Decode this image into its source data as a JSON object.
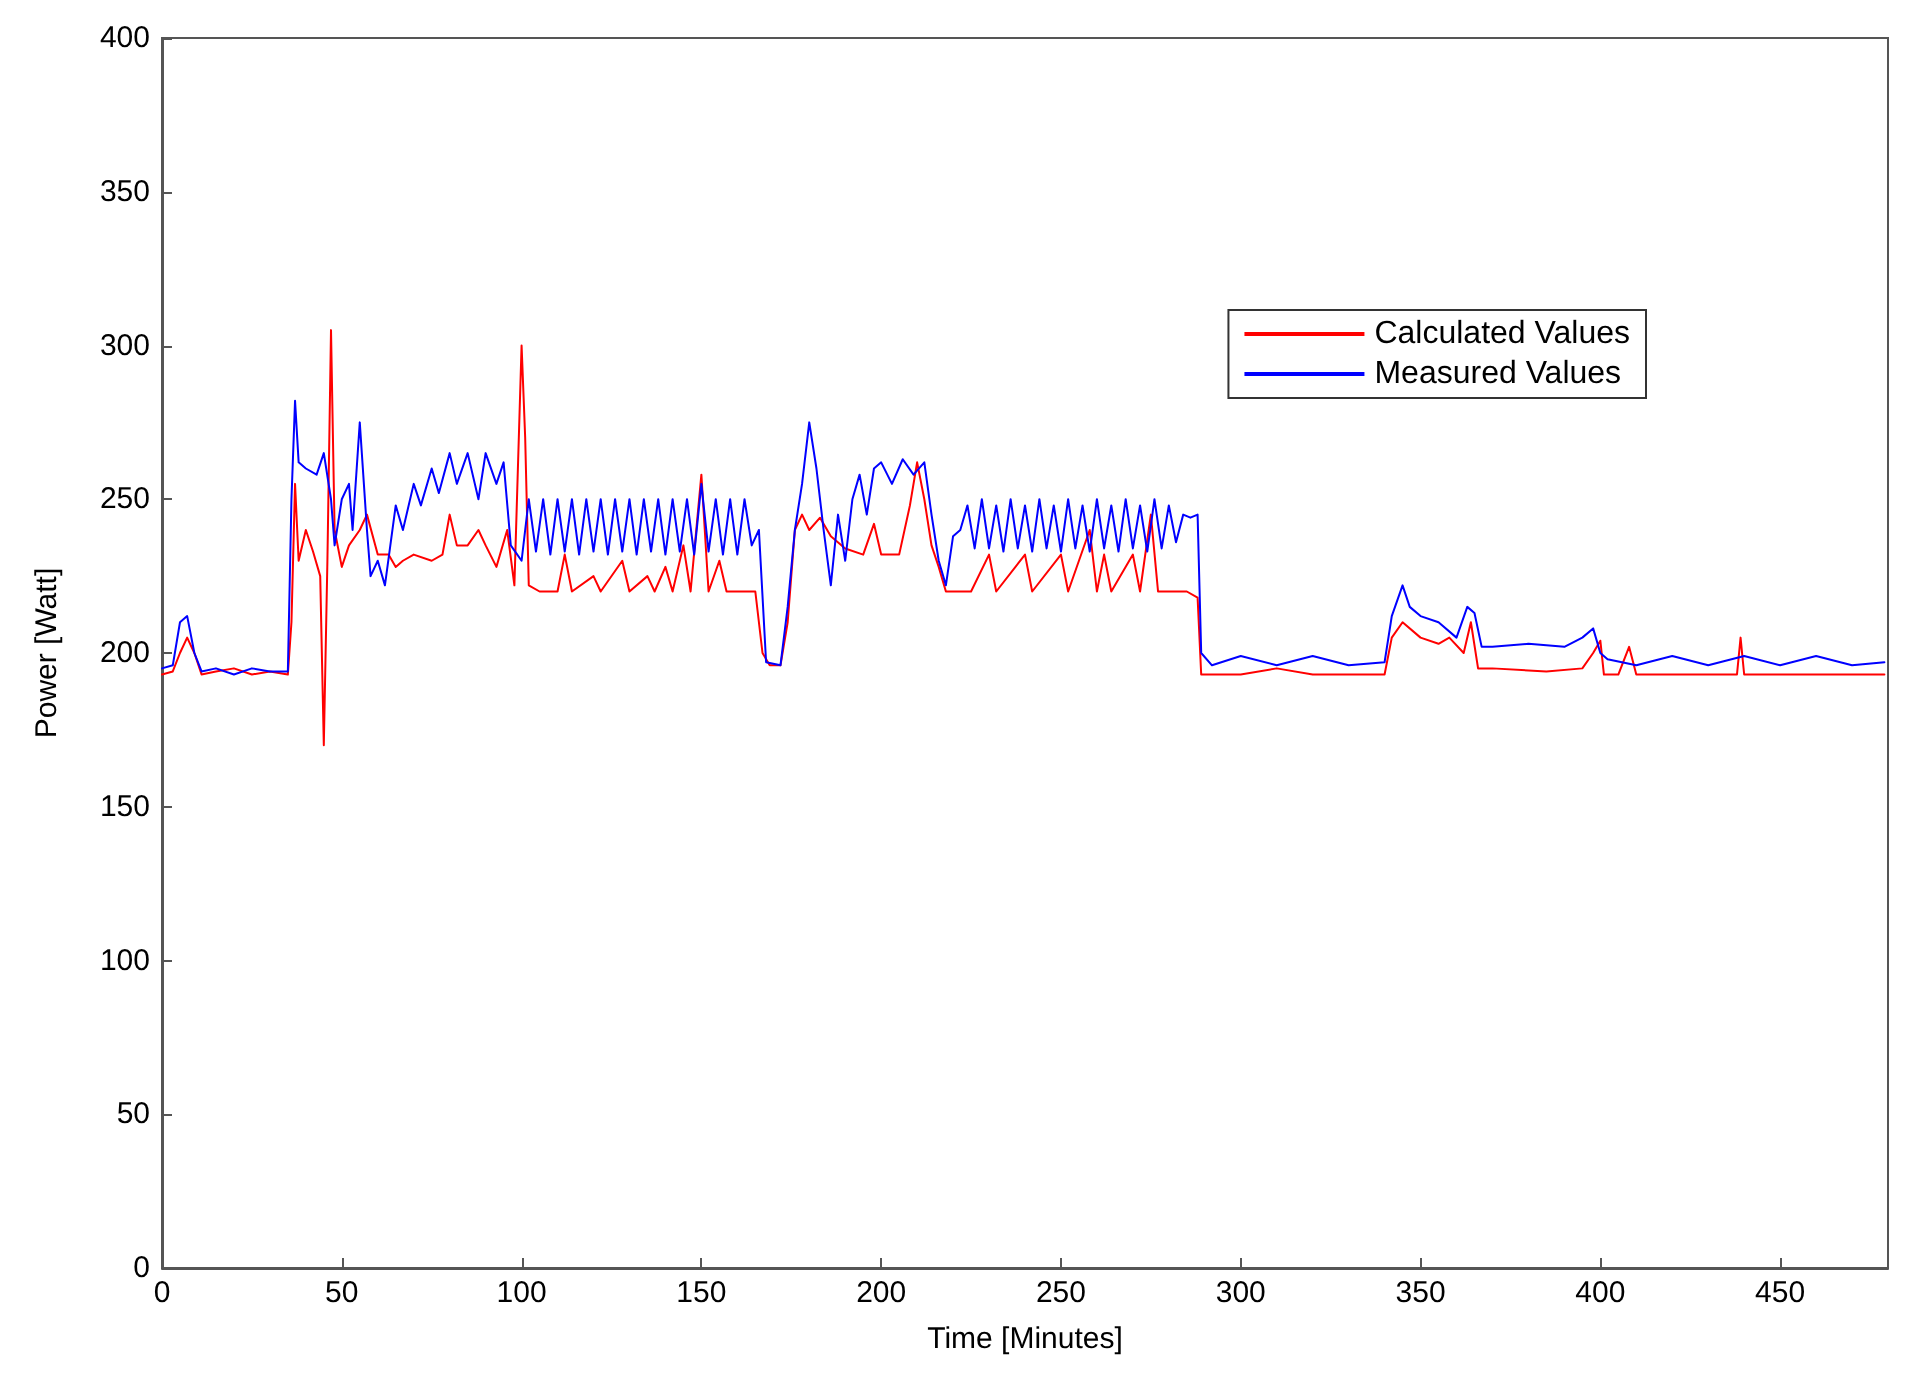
{
  "chart_data": {
    "type": "line",
    "xlabel": "Time [Minutes]",
    "ylabel": "Power [Watt]",
    "xlim": [
      0,
      480
    ],
    "xticks": [
      0,
      50,
      100,
      150,
      200,
      250,
      300,
      350,
      400,
      450
    ],
    "ylim": [
      0,
      400
    ],
    "yticks": [
      0,
      50,
      100,
      150,
      200,
      250,
      300,
      350,
      400
    ],
    "grid": false,
    "legend": "top right",
    "marker": "none",
    "line_style": "solid",
    "series": [
      {
        "name": "Calculated Values",
        "color": "#ff0000",
        "x": [
          0,
          3,
          5,
          7,
          9,
          11,
          15,
          20,
          25,
          30,
          35,
          36,
          37,
          38,
          40,
          42,
          44,
          45,
          46,
          47,
          48,
          50,
          52,
          55,
          57,
          60,
          63,
          65,
          67,
          70,
          75,
          78,
          80,
          82,
          85,
          88,
          90,
          93,
          96,
          98,
          100,
          101,
          102,
          105,
          110,
          112,
          114,
          120,
          122,
          128,
          130,
          135,
          137,
          140,
          142,
          145,
          147,
          150,
          152,
          155,
          157,
          165,
          167,
          169,
          172,
          174,
          176,
          178,
          180,
          183,
          186,
          190,
          195,
          198,
          200,
          205,
          208,
          210,
          212,
          214,
          216,
          218,
          225,
          230,
          232,
          240,
          242,
          250,
          252,
          258,
          260,
          262,
          264,
          270,
          272,
          275,
          277,
          285,
          288,
          289,
          300,
          310,
          320,
          330,
          340,
          342,
          345,
          350,
          355,
          358,
          362,
          364,
          366,
          370,
          385,
          395,
          398,
          400,
          401,
          405,
          408,
          410,
          438,
          439,
          440,
          479
        ],
        "values": [
          193,
          194,
          200,
          205,
          200,
          193,
          194,
          195,
          193,
          194,
          193,
          210,
          255,
          230,
          240,
          233,
          225,
          170,
          230,
          305,
          240,
          228,
          235,
          240,
          245,
          232,
          232,
          228,
          230,
          232,
          230,
          232,
          245,
          235,
          235,
          240,
          235,
          228,
          240,
          222,
          300,
          270,
          222,
          220,
          220,
          232,
          220,
          225,
          220,
          230,
          220,
          225,
          220,
          228,
          220,
          235,
          220,
          258,
          220,
          230,
          220,
          220,
          200,
          196,
          196,
          210,
          240,
          245,
          240,
          244,
          238,
          234,
          232,
          242,
          232,
          232,
          248,
          262,
          250,
          235,
          228,
          220,
          220,
          232,
          220,
          232,
          220,
          232,
          220,
          240,
          220,
          232,
          220,
          232,
          220,
          245,
          220,
          220,
          218,
          193,
          193,
          195,
          193,
          193,
          193,
          205,
          210,
          205,
          203,
          205,
          200,
          210,
          195,
          195,
          194,
          195,
          200,
          204,
          193,
          193,
          202,
          193,
          193,
          205,
          193,
          193
        ]
      },
      {
        "name": "Measured Values",
        "color": "#0000ff",
        "x": [
          0,
          3,
          5,
          7,
          9,
          11,
          15,
          20,
          25,
          30,
          35,
          36,
          37,
          38,
          40,
          43,
          45,
          47,
          48,
          50,
          52,
          53,
          55,
          57,
          58,
          60,
          62,
          65,
          67,
          70,
          72,
          75,
          77,
          80,
          82,
          85,
          88,
          90,
          93,
          95,
          97,
          100,
          102,
          104,
          106,
          108,
          110,
          112,
          114,
          116,
          118,
          120,
          122,
          124,
          126,
          128,
          130,
          132,
          134,
          136,
          138,
          140,
          142,
          144,
          146,
          148,
          150,
          152,
          154,
          156,
          158,
          160,
          162,
          164,
          166,
          168,
          172,
          174,
          176,
          178,
          180,
          182,
          184,
          186,
          188,
          190,
          192,
          194,
          196,
          198,
          200,
          203,
          206,
          209,
          212,
          214,
          216,
          218,
          220,
          222,
          224,
          226,
          228,
          230,
          232,
          234,
          236,
          238,
          240,
          242,
          244,
          246,
          248,
          250,
          252,
          254,
          256,
          258,
          260,
          262,
          264,
          266,
          268,
          270,
          272,
          274,
          276,
          278,
          280,
          282,
          284,
          286,
          288,
          289,
          292,
          300,
          310,
          320,
          330,
          340,
          342,
          345,
          347,
          350,
          355,
          360,
          363,
          365,
          367,
          370,
          380,
          390,
          395,
          398,
          400,
          402,
          410,
          420,
          430,
          440,
          450,
          460,
          470,
          479
        ],
        "values": [
          195,
          196,
          210,
          212,
          200,
          194,
          195,
          193,
          195,
          194,
          194,
          250,
          282,
          262,
          260,
          258,
          265,
          250,
          235,
          250,
          255,
          240,
          275,
          240,
          225,
          230,
          222,
          248,
          240,
          255,
          248,
          260,
          252,
          265,
          255,
          265,
          250,
          265,
          255,
          262,
          235,
          230,
          250,
          233,
          250,
          232,
          250,
          233,
          250,
          232,
          250,
          233,
          250,
          232,
          250,
          233,
          250,
          232,
          250,
          233,
          250,
          232,
          250,
          233,
          250,
          232,
          255,
          233,
          250,
          232,
          250,
          232,
          250,
          235,
          240,
          197,
          196,
          215,
          240,
          255,
          275,
          260,
          240,
          222,
          245,
          230,
          250,
          258,
          245,
          260,
          262,
          255,
          263,
          258,
          262,
          245,
          230,
          222,
          238,
          240,
          248,
          234,
          250,
          234,
          248,
          233,
          250,
          234,
          248,
          233,
          250,
          234,
          248,
          233,
          250,
          234,
          248,
          233,
          250,
          234,
          248,
          233,
          250,
          234,
          248,
          233,
          250,
          234,
          248,
          236,
          245,
          244,
          245,
          200,
          196,
          199,
          196,
          199,
          196,
          197,
          212,
          222,
          215,
          212,
          210,
          205,
          215,
          213,
          202,
          202,
          203,
          202,
          205,
          208,
          200,
          198,
          196,
          199,
          196,
          199,
          196,
          199,
          196,
          197
        ]
      }
    ]
  }
}
